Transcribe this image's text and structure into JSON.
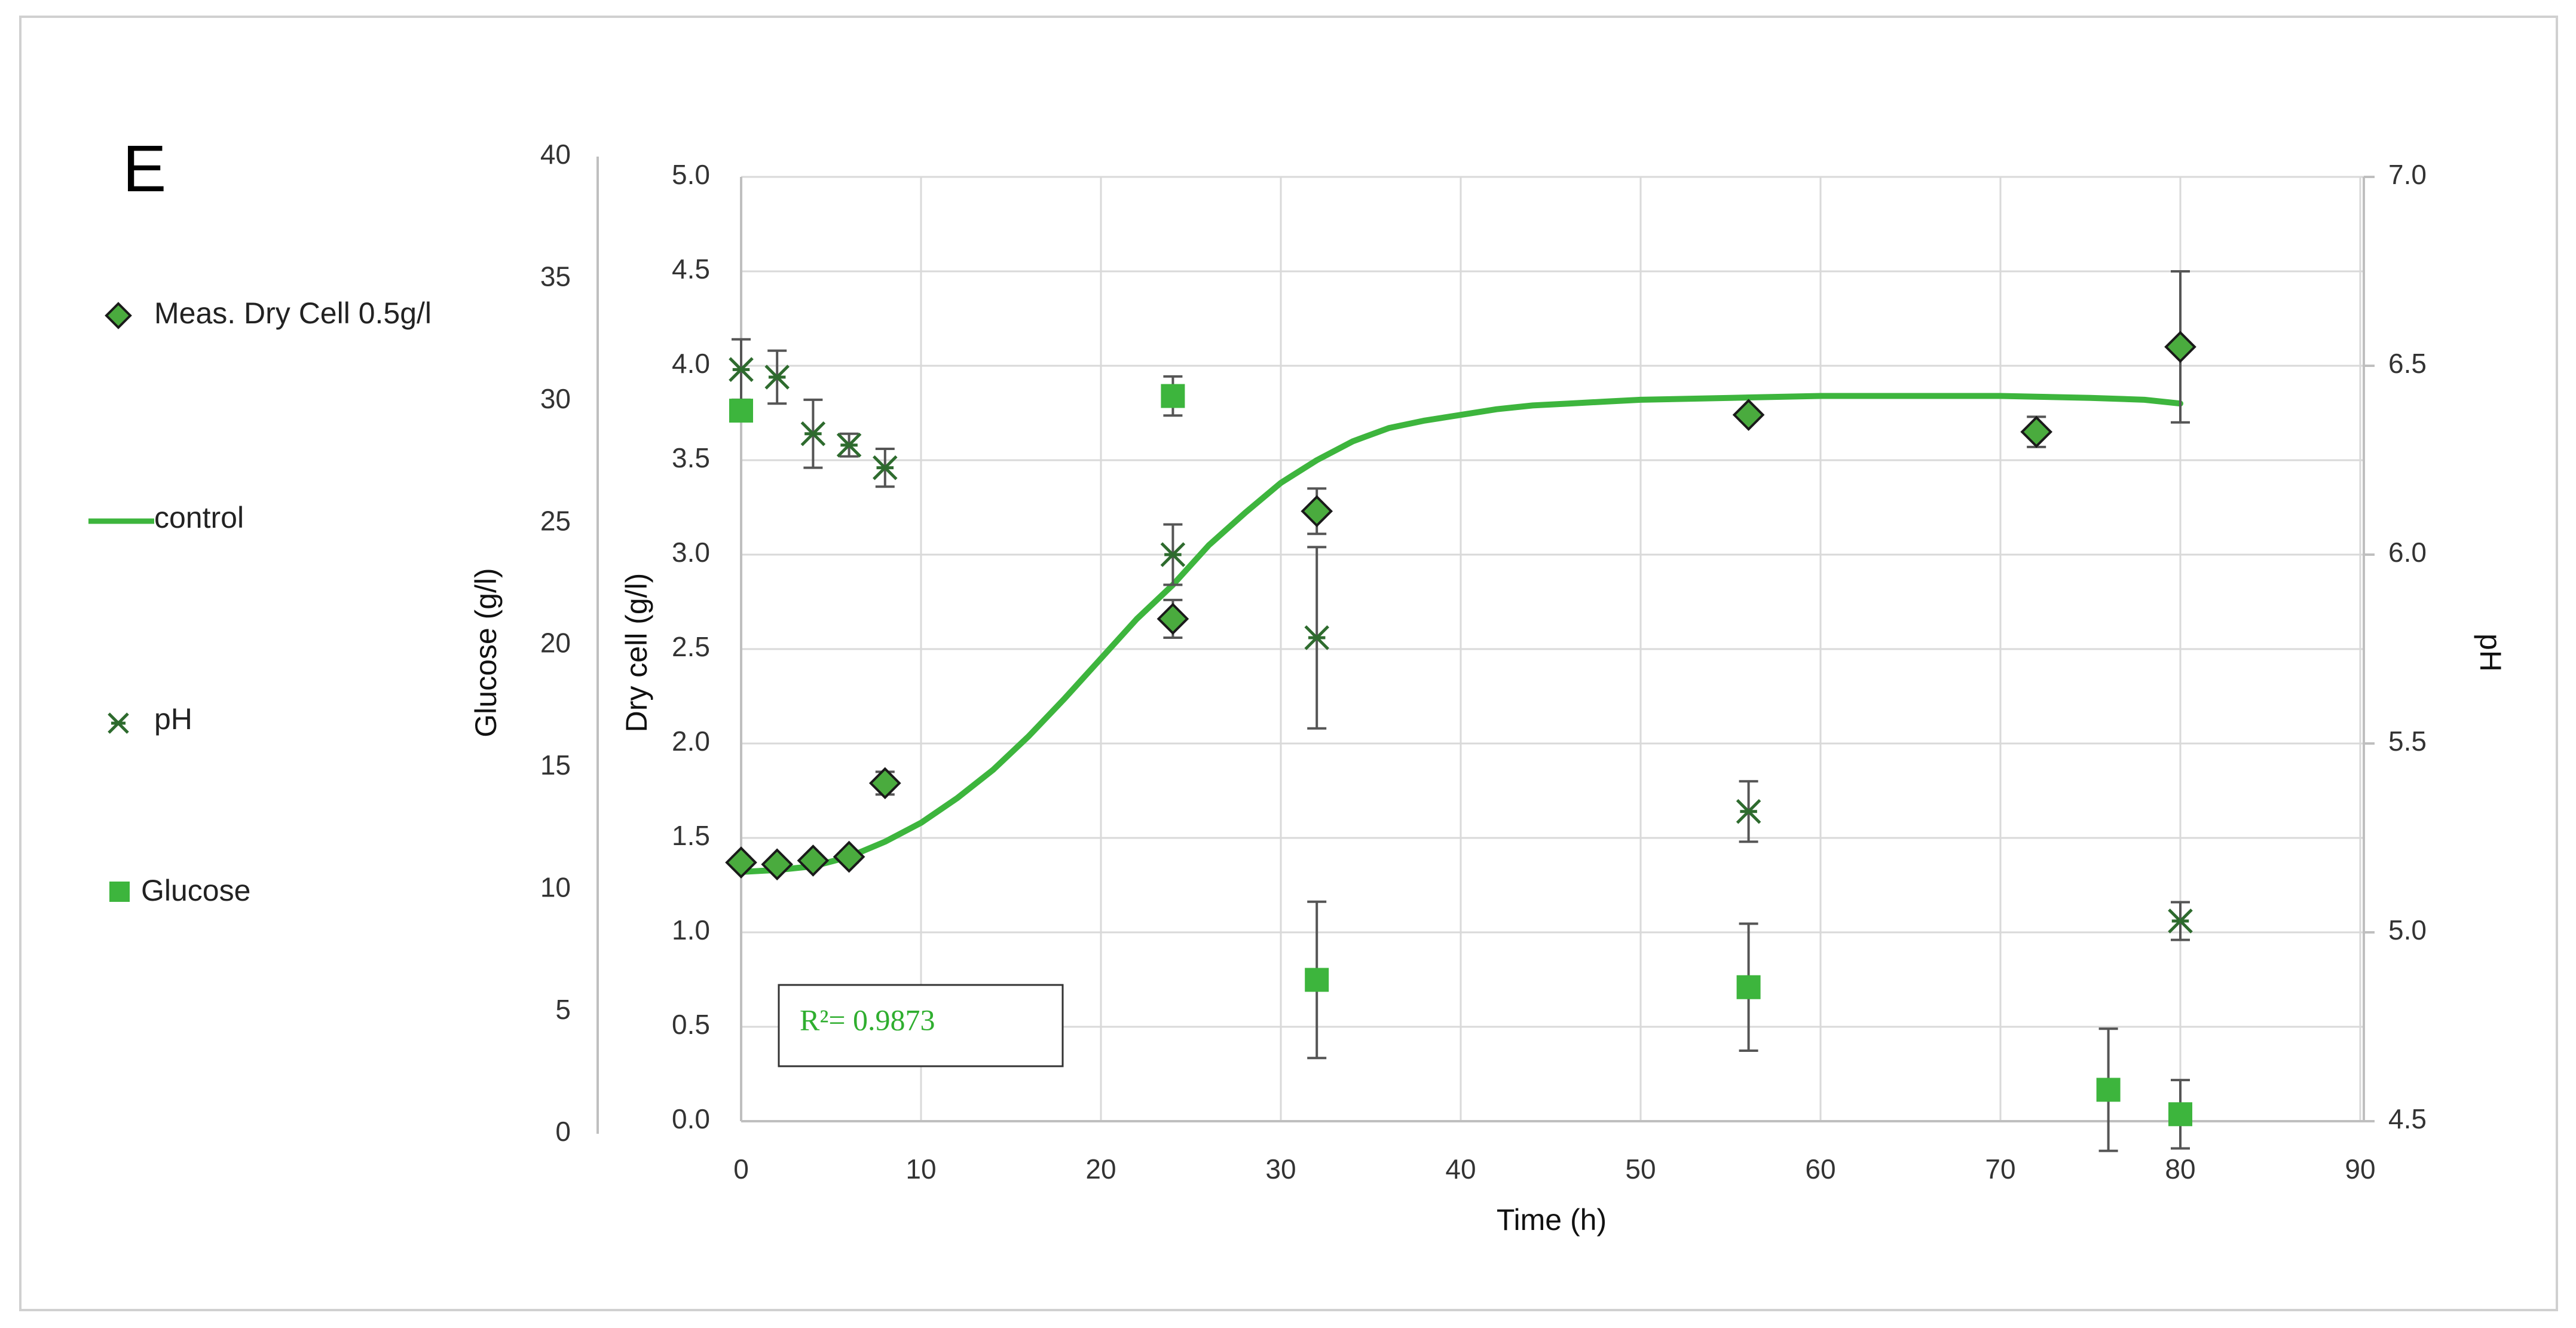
{
  "panel_label": "E",
  "colors": {
    "green": "#3db53d",
    "dark_green": "#2e6b2e",
    "diamond_fill": "#4aab3e",
    "error_bar": "#555555",
    "grid": "#d9d9d9",
    "axis": "#bfbfbf",
    "frame": "#d0d0d0",
    "r2_text": "#2fae2f"
  },
  "legend": {
    "position": "left",
    "dry_cell": "Meas. Dry Cell 0.5g/l",
    "control": "control",
    "ph": "pH",
    "glucose": "Glucose"
  },
  "r2_label": "R²= 0.9873",
  "chart_data": {
    "type": "scatter",
    "xlabel": "Time (h)",
    "ylabel": "Dry cell (g/l)",
    "y2label": "pH",
    "y3label": "Glucose (g/l)",
    "xlim": [
      0,
      90
    ],
    "ylim": [
      0,
      5
    ],
    "y2lim": [
      4.5,
      7
    ],
    "y3lim": [
      0,
      40
    ],
    "xticks": [
      "0",
      "10",
      "20",
      "30",
      "40",
      "50",
      "60",
      "70",
      "80",
      "90"
    ],
    "yticks": [
      "0.0",
      "0.5",
      "1.0",
      "1.5",
      "2.0",
      "2.5",
      "3.0",
      "3.5",
      "4.0",
      "4.5",
      "5.0"
    ],
    "y2ticks": [
      "4.5",
      "5.0",
      "5.5",
      "6.0",
      "6.5",
      "7.0"
    ],
    "y3ticks": [
      "0",
      "5",
      "10",
      "15",
      "20",
      "25",
      "30",
      "35",
      "40"
    ],
    "grid": true,
    "series": [
      {
        "name": "Meas. Dry Cell 0.5g/l",
        "axis": "left",
        "marker": "diamond",
        "x": [
          0,
          2,
          4,
          6,
          8,
          24,
          32,
          56,
          72,
          80
        ],
        "y": [
          1.37,
          1.36,
          1.38,
          1.4,
          1.79,
          2.66,
          3.23,
          3.74,
          3.65,
          4.1
        ],
        "error": [
          0.03,
          0.02,
          0.02,
          0.03,
          0.06,
          0.1,
          0.12,
          0.03,
          0.08,
          0.4
        ]
      },
      {
        "name": "control",
        "axis": "left",
        "type": "line",
        "x": [
          0,
          2,
          4,
          6,
          8,
          10,
          12,
          14,
          16,
          18,
          20,
          22,
          24,
          26,
          28,
          30,
          32,
          34,
          36,
          38,
          40,
          42,
          44,
          46,
          48,
          50,
          55,
          60,
          65,
          70,
          75,
          78,
          80
        ],
        "y": [
          1.32,
          1.33,
          1.35,
          1.4,
          1.48,
          1.58,
          1.71,
          1.86,
          2.04,
          2.24,
          2.45,
          2.66,
          2.84,
          3.05,
          3.22,
          3.38,
          3.5,
          3.6,
          3.67,
          3.71,
          3.74,
          3.77,
          3.79,
          3.8,
          3.81,
          3.82,
          3.83,
          3.84,
          3.84,
          3.84,
          3.83,
          3.82,
          3.8
        ]
      },
      {
        "name": "pH",
        "axis": "right",
        "marker": "asterisk",
        "x": [
          0,
          2,
          4,
          6,
          8,
          24,
          32,
          56,
          80
        ],
        "y": [
          6.49,
          6.47,
          6.32,
          6.29,
          6.23,
          6.0,
          5.78,
          5.32,
          5.03
        ],
        "error": [
          0.08,
          0.07,
          0.09,
          0.03,
          0.05,
          0.08,
          0.24,
          0.08,
          0.05
        ]
      },
      {
        "name": "Glucose",
        "axis": "far-left",
        "marker": "square",
        "x": [
          0,
          24,
          32,
          56,
          76,
          80
        ],
        "y": [
          29.6,
          30.2,
          6.3,
          6.0,
          1.8,
          0.8
        ],
        "error": [
          0.4,
          0.8,
          3.2,
          2.6,
          2.5,
          1.4
        ]
      }
    ]
  }
}
